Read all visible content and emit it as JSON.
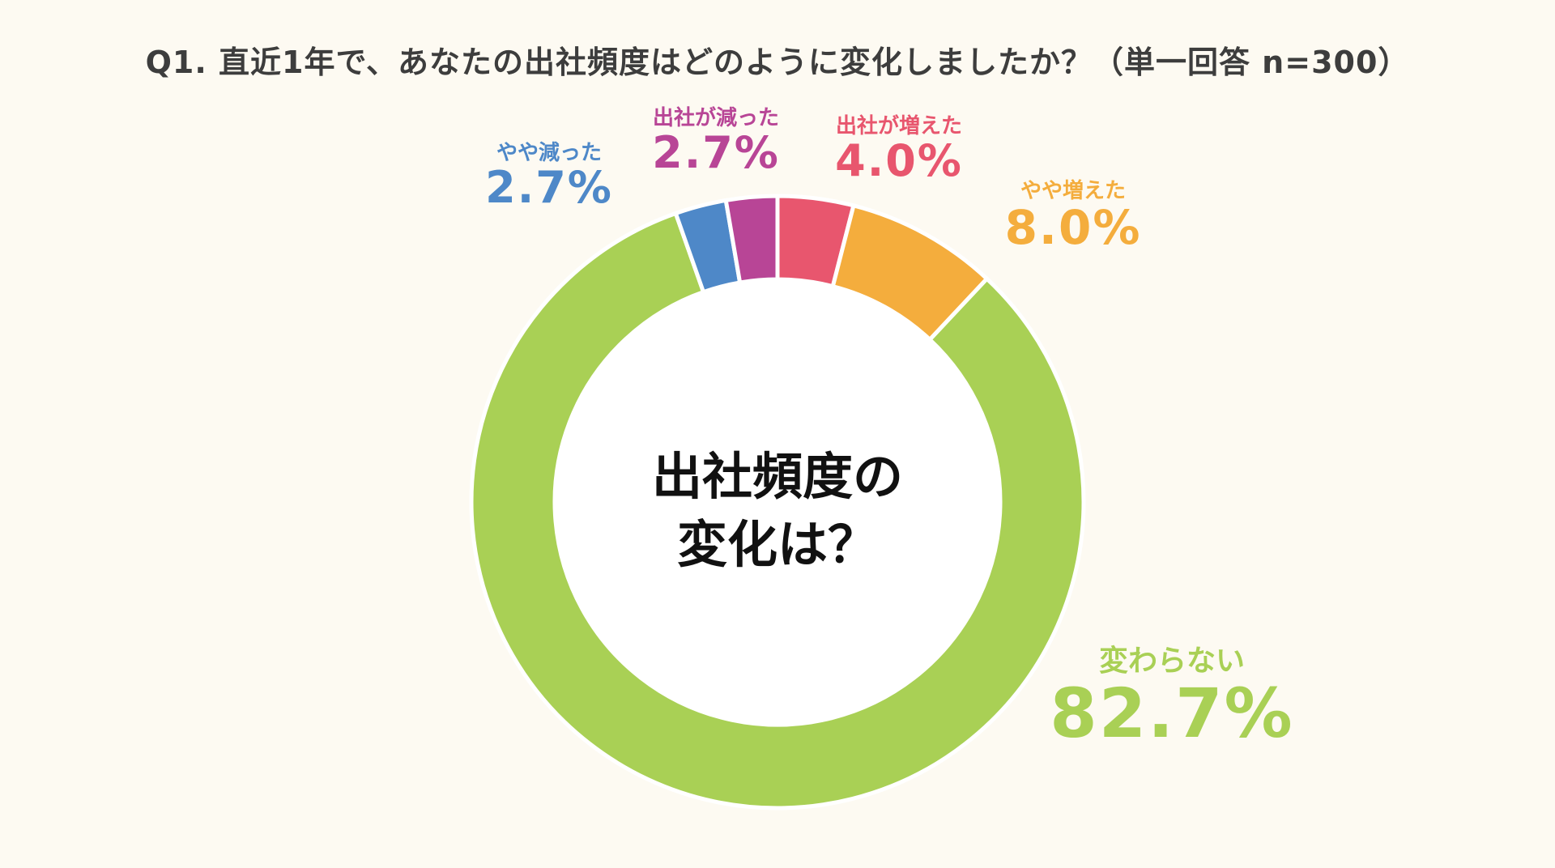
{
  "title": "Q1. 直近1年で、あなたの出社頻度はどのように変化しましたか？（単一回答 n=300）",
  "center_text": {
    "line1": "出社頻度の",
    "line2": "変化は？"
  },
  "chart_data": {
    "type": "pie",
    "title": "Q1. 直近1年で、あなたの出社頻度はどのように変化しましたか？（単一回答 n=300）",
    "donut": true,
    "start_angle_deg": 0,
    "direction": "clockwise",
    "slices": [
      {
        "label": "出社が増えた",
        "value": 4.0,
        "value_label": "4.0%",
        "color": "#e8566e"
      },
      {
        "label": "やや増えた",
        "value": 8.0,
        "value_label": "8.0%",
        "color": "#f4ad3d"
      },
      {
        "label": "変わらない",
        "value": 82.7,
        "value_label": "82.7%",
        "color": "#a9d055"
      },
      {
        "label": "やや減った",
        "value": 2.7,
        "value_label": "2.7%",
        "color": "#4e88c8"
      },
      {
        "label": "出社が減った",
        "value": 2.7,
        "value_label": "2.7%",
        "color": "#b84596"
      }
    ]
  },
  "colors": {
    "background": "#fdfaf2",
    "title_text": "#3d3d3d",
    "center_text": "#111111",
    "slice_separator": "#ffffff"
  }
}
